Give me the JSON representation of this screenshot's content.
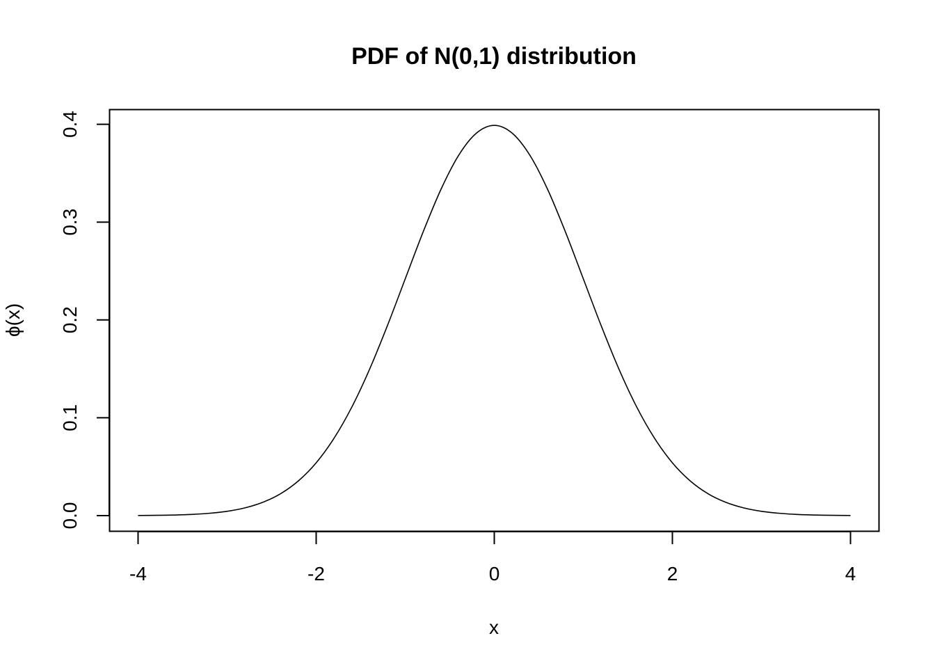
{
  "chart_data": {
    "type": "line",
    "title": "PDF of N(0,1) distribution",
    "xlabel": "x",
    "ylabel": "ϕ(x)",
    "xlim": [
      -4.32,
      4.32
    ],
    "ylim": [
      -0.016,
      0.415
    ],
    "x_ticks": [
      -4,
      -2,
      0,
      2,
      4
    ],
    "x_tick_labels": [
      "-4",
      "-2",
      "0",
      "2",
      "4"
    ],
    "y_ticks": [
      0.0,
      0.1,
      0.2,
      0.3,
      0.4
    ],
    "y_tick_labels": [
      "0.0",
      "0.1",
      "0.2",
      "0.3",
      "0.4"
    ],
    "grid": false,
    "legend": "none",
    "line_color": "#000000",
    "series": [
      {
        "x": [
          -4.0,
          -3.8,
          -3.6,
          -3.4,
          -3.2,
          -3.0,
          -2.8,
          -2.6,
          -2.4,
          -2.2,
          -2.0,
          -1.8,
          -1.6,
          -1.4,
          -1.2,
          -1.0,
          -0.8,
          -0.6,
          -0.4,
          -0.2,
          0.0,
          0.2,
          0.4,
          0.6,
          0.8,
          1.0,
          1.2,
          1.4,
          1.6,
          1.8,
          2.0,
          2.2,
          2.4,
          2.6,
          2.8,
          3.0,
          3.2,
          3.4,
          3.6,
          3.8,
          4.0
        ],
        "values": [
          0.0001,
          0.0003,
          0.0006,
          0.0012,
          0.0024,
          0.0044,
          0.0079,
          0.0136,
          0.0224,
          0.0355,
          0.054,
          0.079,
          0.1109,
          0.1497,
          0.1942,
          0.242,
          0.2897,
          0.3332,
          0.3683,
          0.391,
          0.3989,
          0.391,
          0.3683,
          0.3332,
          0.2897,
          0.242,
          0.1942,
          0.1497,
          0.1109,
          0.079,
          0.054,
          0.0355,
          0.0224,
          0.0136,
          0.0079,
          0.0044,
          0.0024,
          0.0012,
          0.0006,
          0.0003,
          0.0001
        ]
      }
    ]
  }
}
